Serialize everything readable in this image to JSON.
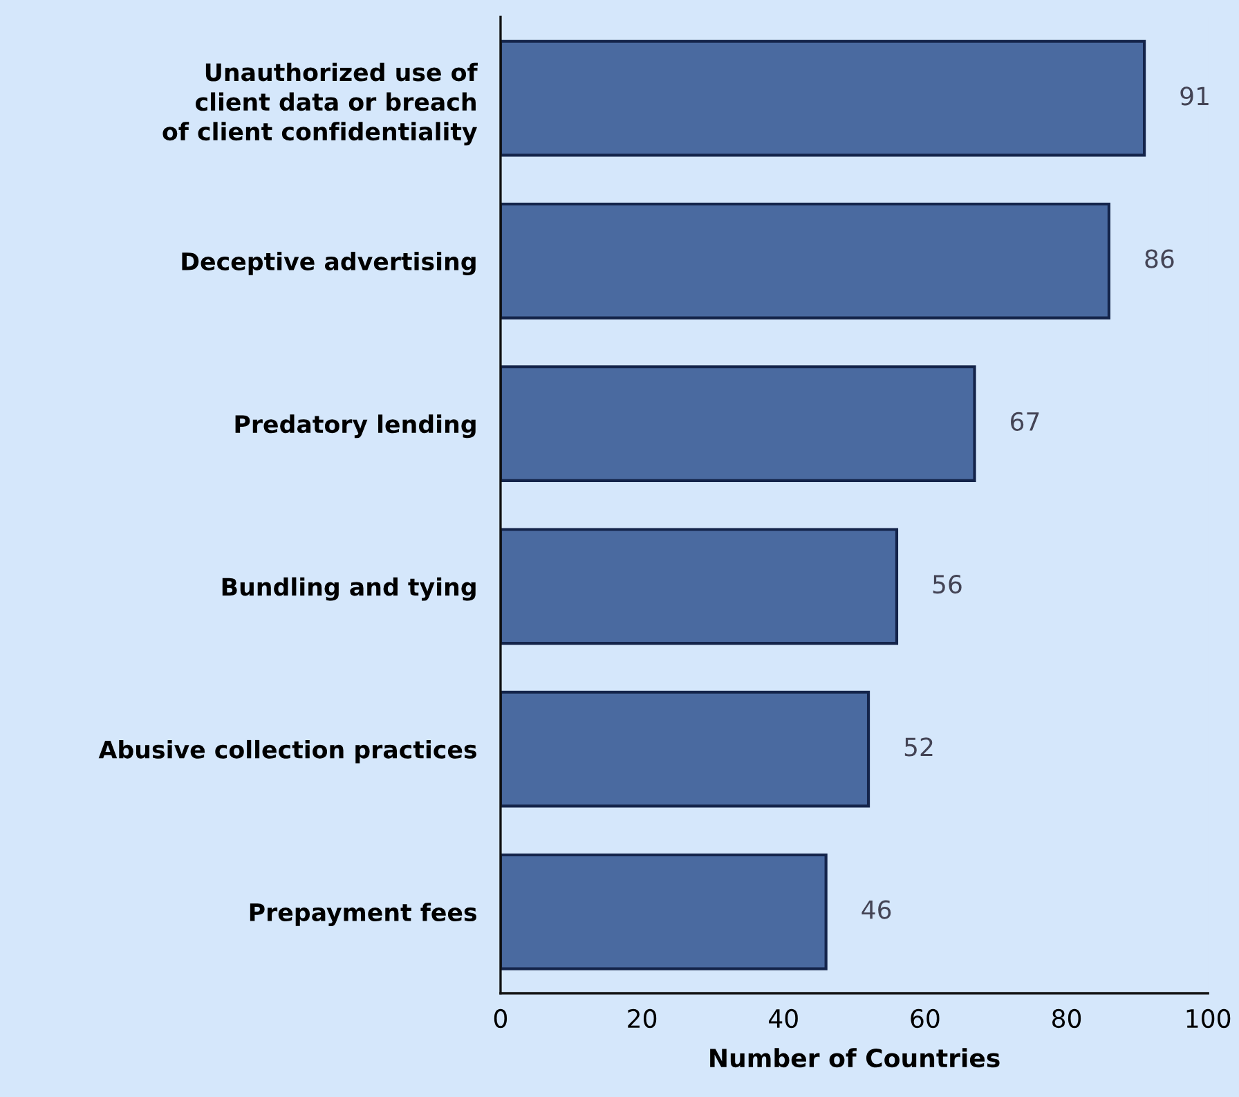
{
  "chart_data": {
    "type": "bar",
    "orientation": "horizontal",
    "xlabel": "Number of Countries",
    "categories": [
      "Unauthorized use of\nclient data or breach\nof client confidentiality",
      "Deceptive advertising",
      "Predatory lending",
      "Bundling and tying",
      "Abusive collection practices",
      "Prepayment fees"
    ],
    "values": [
      91,
      86,
      67,
      56,
      52,
      46
    ],
    "color": "#4a6aa0",
    "xlim": [
      0,
      100
    ],
    "xticks": [
      0,
      20,
      40,
      60,
      80,
      100
    ],
    "grid": false,
    "legend": false,
    "data_labels": true
  }
}
